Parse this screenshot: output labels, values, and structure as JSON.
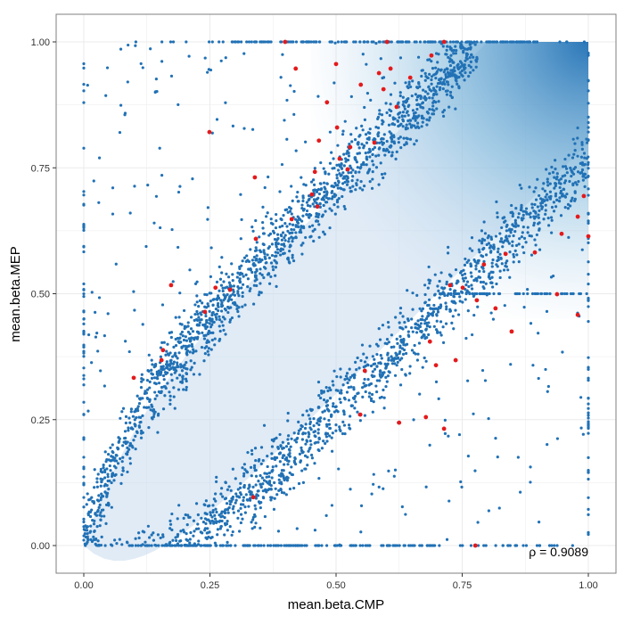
{
  "chart_data": {
    "type": "scatter",
    "title": "",
    "xlabel": "mean.beta.CMP",
    "ylabel": "mean.beta.MEP",
    "xlim": [
      -0.055,
      1.055
    ],
    "ylim": [
      -0.055,
      1.055
    ],
    "x_ticks": [
      "0.00",
      "0.25",
      "0.50",
      "0.75",
      "1.00"
    ],
    "y_ticks": [
      "0.00",
      "0.25",
      "0.50",
      "0.75",
      "1.00"
    ],
    "grid": true,
    "annotation": "ρ = 0.9089",
    "background_density": "blue 2D density along diagonal, darkest near (1,1)",
    "colors": {
      "points": "#2171b5",
      "highlight": "#e41a1c",
      "density": "#2171b5",
      "grid": "#ebebeb",
      "border": "#7f7f7f"
    },
    "highlight_points": [
      [
        0.399,
        1.0
      ],
      [
        0.42,
        0.947
      ],
      [
        0.5,
        0.956
      ],
      [
        0.601,
        1.0
      ],
      [
        0.714,
        1.0
      ],
      [
        0.689,
        0.973
      ],
      [
        0.608,
        0.947
      ],
      [
        0.647,
        0.929
      ],
      [
        0.585,
        0.938
      ],
      [
        0.549,
        0.915
      ],
      [
        0.594,
        0.906
      ],
      [
        0.482,
        0.88
      ],
      [
        0.62,
        0.871
      ],
      [
        0.249,
        0.821
      ],
      [
        0.502,
        0.83
      ],
      [
        0.576,
        0.8
      ],
      [
        0.528,
        0.791
      ],
      [
        0.466,
        0.804
      ],
      [
        0.507,
        0.768
      ],
      [
        0.523,
        0.747
      ],
      [
        0.458,
        0.742
      ],
      [
        0.339,
        0.731
      ],
      [
        0.452,
        0.697
      ],
      [
        0.463,
        0.673
      ],
      [
        0.412,
        0.648
      ],
      [
        0.341,
        0.609
      ],
      [
        0.173,
        0.517
      ],
      [
        0.261,
        0.512
      ],
      [
        0.29,
        0.508
      ],
      [
        0.24,
        0.464
      ],
      [
        0.099,
        0.333
      ],
      [
        0.154,
        0.368
      ],
      [
        0.157,
        0.388
      ],
      [
        0.726,
        0.517
      ],
      [
        0.793,
        0.558
      ],
      [
        0.836,
        0.579
      ],
      [
        0.894,
        0.582
      ],
      [
        0.947,
        0.619
      ],
      [
        0.979,
        0.653
      ],
      [
        1.0,
        0.614
      ],
      [
        0.938,
        0.499
      ],
      [
        0.979,
        0.458
      ],
      [
        0.779,
        0.487
      ],
      [
        0.751,
        0.512
      ],
      [
        0.816,
        0.471
      ],
      [
        0.848,
        0.425
      ],
      [
        0.686,
        0.405
      ],
      [
        0.737,
        0.368
      ],
      [
        0.698,
        0.358
      ],
      [
        0.557,
        0.347
      ],
      [
        0.548,
        0.26
      ],
      [
        0.625,
        0.244
      ],
      [
        0.678,
        0.255
      ],
      [
        0.714,
        0.232
      ],
      [
        0.336,
        0.096
      ],
      [
        0.776,
        0.0
      ],
      [
        0.991,
        0.694
      ]
    ]
  }
}
